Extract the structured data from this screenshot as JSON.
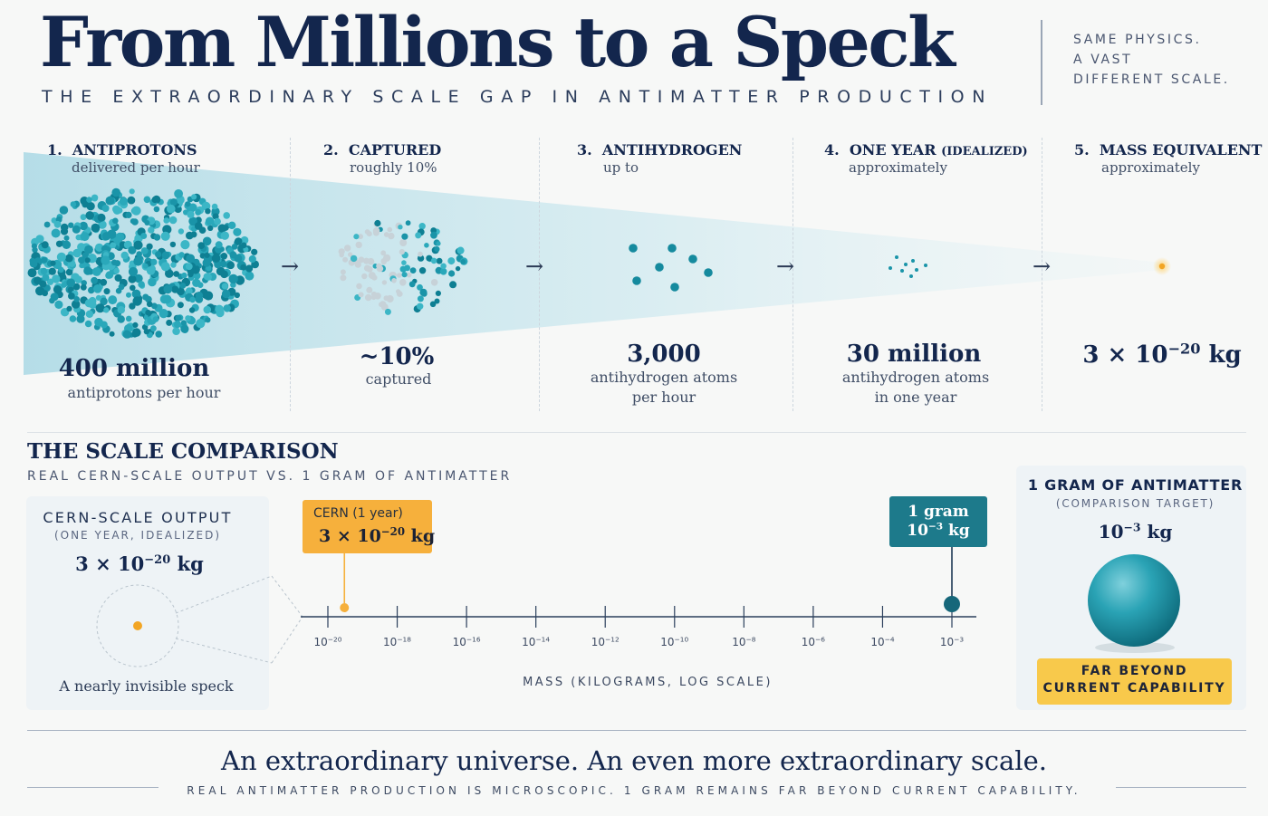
{
  "header": {
    "title": "From Millions to a Speck",
    "subtitle": "THE EXTRAORDINARY SCALE GAP IN ANTIMATTER PRODUCTION",
    "tagline": [
      "SAME PHYSICS.",
      "A VAST",
      "DIFFERENT SCALE."
    ]
  },
  "stages": [
    {
      "number": "1.",
      "title": "ANTIPROTONS",
      "qualifier": "",
      "subtitle": "delivered per hour",
      "value": "400 million",
      "caption": [
        "antiprotons per hour"
      ]
    },
    {
      "number": "2.",
      "title": "CAPTURED",
      "qualifier": "",
      "subtitle": "roughly 10%",
      "value": "~10%",
      "caption": [
        "captured"
      ]
    },
    {
      "number": "3.",
      "title": "ANTIHYDROGEN",
      "qualifier": "",
      "subtitle": "up to",
      "value": "3,000",
      "caption": [
        "antihydrogen atoms",
        "per hour"
      ]
    },
    {
      "number": "4.",
      "title": "ONE YEAR",
      "qualifier": "(IDEALIZED)",
      "subtitle": "approximately",
      "value": "30 million",
      "caption": [
        "antihydrogen atoms",
        "in one year"
      ]
    },
    {
      "number": "5.",
      "title": "MASS EQUIVALENT",
      "qualifier": "",
      "subtitle": "approximately",
      "value_mantissa": "3 × 10",
      "value_exponent": "−20",
      "value_unit": " kg",
      "caption": []
    }
  ],
  "comparison": {
    "title": "THE SCALE COMPARISON",
    "subtitle": "REAL CERN-SCALE OUTPUT VS. 1 GRAM OF ANTIMATTER",
    "left_panel": {
      "title": "CERN-SCALE OUTPUT",
      "note": "(ONE YEAR, IDEALIZED)",
      "value_mantissa": "3 × 10",
      "value_exponent": "−20",
      "value_unit": " kg",
      "caption": "A nearly invisible speck"
    },
    "cern_callout": {
      "label": "CERN (1 year)",
      "value_mantissa": "3 × 10",
      "value_exponent": "−20",
      "value_unit": " kg",
      "color": "#f6b03c"
    },
    "gram_callout": {
      "label": "1 gram",
      "value_mantissa": "10",
      "value_exponent": "−3",
      "value_unit": " kg",
      "color": "#1d7a8b"
    },
    "right_panel": {
      "title": "1 GRAM OF ANTIMATTER",
      "note": "(COMPARISON TARGET)",
      "value_mantissa": "10",
      "value_exponent": "−3",
      "value_unit": " kg",
      "badge": [
        "FAR BEYOND",
        "CURRENT CAPABILITY"
      ]
    }
  },
  "chart_data": {
    "type": "scatter",
    "x_scale": "log",
    "x_ticks": [
      1e-20,
      1e-18,
      1e-16,
      1e-14,
      1e-12,
      1e-10,
      1e-08,
      1e-06,
      0.0001,
      0.001
    ],
    "tick_base": "10",
    "tick_exponents": [
      "−20",
      "−18",
      "−16",
      "−14",
      "−12",
      "−10",
      "−8",
      "−6",
      "−4",
      "−3"
    ],
    "xlabel": "MASS (KILOGRAMS, LOG SCALE)",
    "points": [
      {
        "name": "CERN (1 year)",
        "x": 3e-20,
        "color": "#f6b03c"
      },
      {
        "name": "1 gram",
        "x": 0.001,
        "color": "#1d7a8b"
      }
    ]
  },
  "footer": {
    "title": "An extraordinary universe. An even more extraordinary scale.",
    "subtitle": "REAL ANTIMATTER PRODUCTION IS MICROSCOPIC. 1 GRAM REMAINS FAR BEYOND CURRENT CAPABILITY."
  },
  "colors": {
    "navy": "#13264d",
    "teal": "#1e97aa",
    "accent_orange": "#f6b03c",
    "badge_yellow": "#f8c94b"
  }
}
